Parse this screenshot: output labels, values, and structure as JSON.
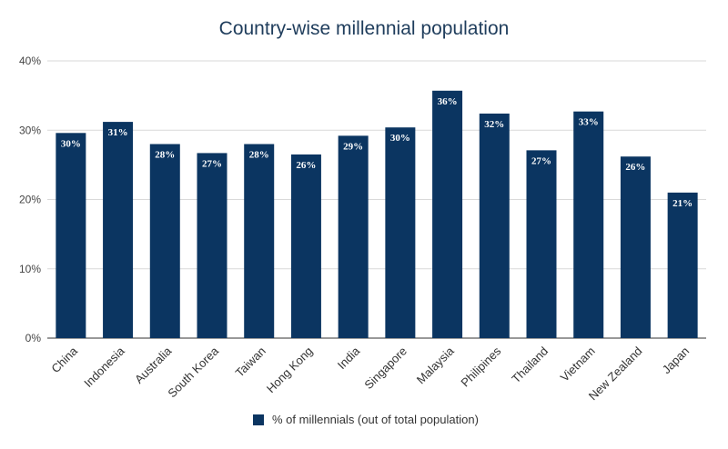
{
  "chart_data": {
    "type": "bar",
    "title": "Country-wise millennial population",
    "xlabel": "",
    "ylabel": "",
    "ylim": [
      0,
      40
    ],
    "yticks": [
      0,
      10,
      20,
      30,
      40
    ],
    "ytick_labels": [
      "0%",
      "10%",
      "20%",
      "30%",
      "40%"
    ],
    "categories": [
      "China",
      "Indonesia",
      "Australia",
      "South Korea",
      "Taiwan",
      "Hong Kong",
      "India",
      "Singapore",
      "Malaysia",
      "Philipines",
      "Thailand",
      "Vietnam",
      "New Zealand",
      "Japan"
    ],
    "series": [
      {
        "name": "% of millennials (out of total population)",
        "values": [
          29.6,
          31.2,
          28.0,
          26.7,
          28.0,
          26.5,
          29.2,
          30.4,
          35.7,
          32.4,
          27.1,
          32.7,
          26.2,
          21.0
        ],
        "data_labels": [
          "30%",
          "31%",
          "28%",
          "27%",
          "28%",
          "26%",
          "29%",
          "30%",
          "36%",
          "32%",
          "27%",
          "33%",
          "26%",
          "21%"
        ],
        "color": "#0b3561"
      }
    ],
    "grid": true,
    "legend_position": "bottom"
  }
}
